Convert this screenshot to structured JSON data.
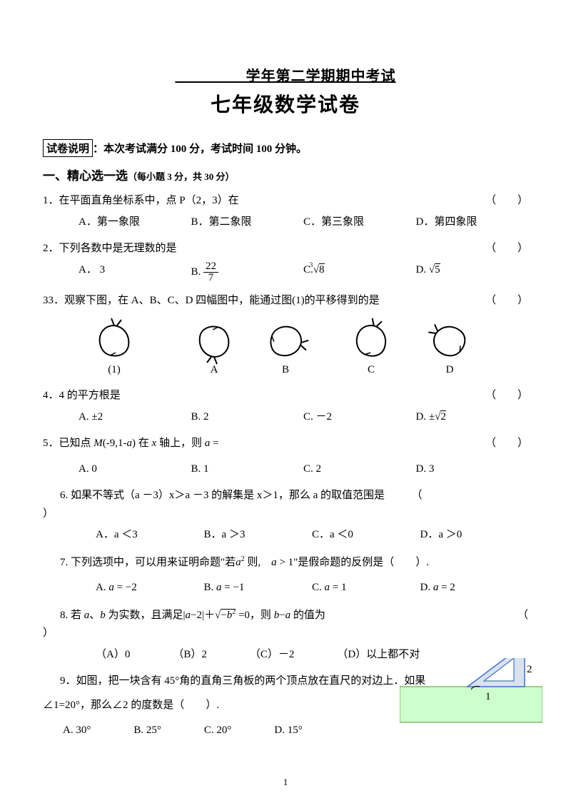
{
  "header": {
    "line1": "_________学年第二学期期中考试",
    "line2": "七年级数学试卷"
  },
  "desc": {
    "box": "试卷说明",
    "rest": "：本次考试满分 100 分，考试时间  100 分钟。"
  },
  "sectionA": {
    "title": "一、精心选一选",
    "sub": "（每小题 3 分，共 30 分）"
  },
  "paren": "（　　）",
  "parenB": "（　　）.",
  "q1": {
    "text": "1．在平面直角坐标系中，点 P（2，3）在",
    "A": "A．第一象限",
    "B": "B．第二象限",
    "C": "C．第三象限",
    "D": "D．第四象限"
  },
  "q2": {
    "text": "2．下列各数中是无理数的是",
    "A": "A．  3",
    "B_pre": "B.",
    "B_num": "22",
    "B_den": "7",
    "C_pre": "C.",
    "C_deg": "3",
    "C_body": "8",
    "D_pre": "D. ",
    "D_body": "5"
  },
  "q3": {
    "text": "33．观察下图，在 A、B、C、D 四幅图中，能通过图(1)的平移得到的是",
    "labels": [
      "(1)",
      "A",
      "B",
      "C",
      "D"
    ],
    "shape_color": "#000000",
    "rotations": [
      0,
      180,
      95,
      10,
      300
    ]
  },
  "q4": {
    "text": "4．4 的平方根是",
    "A": "A. ±2",
    "B": "B. 2",
    "C": "C. －2",
    "D_pre": "D. ±",
    "D_body": "2"
  },
  "q5": {
    "text_pre": "5．已知点 ",
    "M": "M",
    "text_mid": "(-9,1-",
    "a": "a",
    "text_mid2": ") 在 ",
    "x": "x",
    "text_post": " 轴上，则 ",
    "a2": "a",
    "eq": " =",
    "A": "A. 0",
    "B": "B. 1",
    "C": "C. 2",
    "D": "D. 3"
  },
  "q6": {
    "text": "6.  如果不等式（a －3）x＞a －3 的解集是 x＞1，那么 a 的取值范围是",
    "close": "）",
    "A": "A．a ＜3",
    "B": "B．a ＞3",
    "C": "C．a ＜0",
    "D": "D．a ＞0"
  },
  "q7": {
    "text_pre": "7.  下列选项中，可以用来证明命题\"若",
    "mid": " 则,",
    "post": "\"是假命题的反例是（　　）.",
    "sq": "a",
    "sqexp": "2",
    "one": "1",
    "gt": "a > 1",
    "A_pre": "A.  ",
    "A_a": "a",
    "A_v": " = −2",
    "B_pre": "B.  ",
    "B_a": "a",
    "B_v": " = −1",
    "C_pre": "C.  ",
    "C_a": "a",
    "C_v": " = 1",
    "D_pre": "D.  ",
    "D_a": "a",
    "D_v": " = 2"
  },
  "q8": {
    "text_pre": "8.  若 ",
    "a": "a",
    "sep": "、",
    "b": "b",
    "mid": " 为实数，且满足|",
    "a2": "a",
    "mid2": "−2|＋",
    "rt_pre": "−",
    "rt_b": "b",
    "rt_exp": "2",
    "mid3": " =0，则 ",
    "b2": "b",
    "mid4": "−",
    "a3": "a",
    "post": " 的值为",
    "open": "（",
    "close": "）",
    "A": "（A）0",
    "B": "（B）2",
    "C": "（C）－2",
    "D": "（D）以上都不对"
  },
  "q9": {
    "line1": "9．如图，把一块含有 45°角的直角三角板的两个顶点放在直尺的对边上．如果",
    "line2": "∠1=20°，那么∠2 的度数是（　　）.",
    "A": "A. 30°",
    "B": "B. 25°",
    "C": "C. 20°",
    "D": "D. 15°",
    "ruler_fill": "#ccffcc",
    "ruler_stroke": "#70ad47",
    "tri_fill": "#d9e2f3",
    "tri_stroke": "#4472c4",
    "label1": "1",
    "label2": "2"
  },
  "page": "1"
}
